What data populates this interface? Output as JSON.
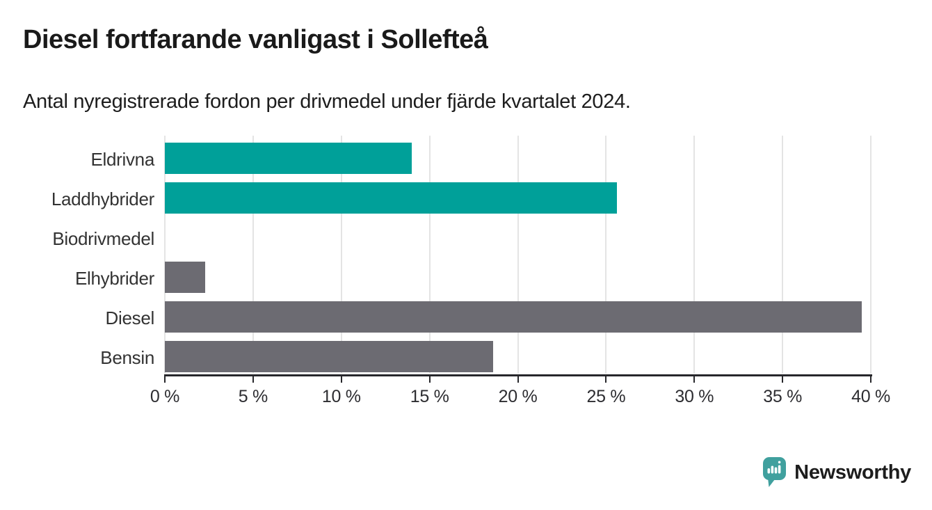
{
  "title": "Diesel fortfarande vanligast i Sollefteå",
  "subtitle": "Antal nyregistrerade fordon per drivmedel under fjärde kvartalet 2024.",
  "chart_data": {
    "type": "bar",
    "orientation": "horizontal",
    "categories": [
      "Eldrivna",
      "Laddhybrider",
      "Biodrivmedel",
      "Elhybrider",
      "Diesel",
      "Bensin"
    ],
    "values": [
      14.0,
      25.6,
      0,
      2.3,
      39.5,
      18.6
    ],
    "unit": "%",
    "bar_colors": [
      "#00a099",
      "#00a099",
      "#00a099",
      "#6c6b72",
      "#6c6b72",
      "#6c6b72"
    ],
    "xlim": [
      0,
      40
    ],
    "x_ticks": [
      0,
      5,
      10,
      15,
      20,
      25,
      30,
      35,
      40
    ],
    "x_tick_labels": [
      "0 %",
      "5 %",
      "10 %",
      "15 %",
      "20 %",
      "25 %",
      "30 %",
      "35 %",
      "40 %"
    ],
    "grid": "vertical-gridlines",
    "legend": "none",
    "title": "Diesel fortfarande vanligast i Sollefteå",
    "xlabel": "",
    "ylabel": ""
  },
  "branding": {
    "name": "Newsworthy",
    "logo_icon": "newsworthy-speech-bubble-chart-icon",
    "color": "#4aa2a2"
  },
  "colors": {
    "background": "#ffffff",
    "teal_bar": "#00a099",
    "gray_bar": "#6c6b72",
    "gridline": "#e4e4e4",
    "axis": "#27272b"
  }
}
